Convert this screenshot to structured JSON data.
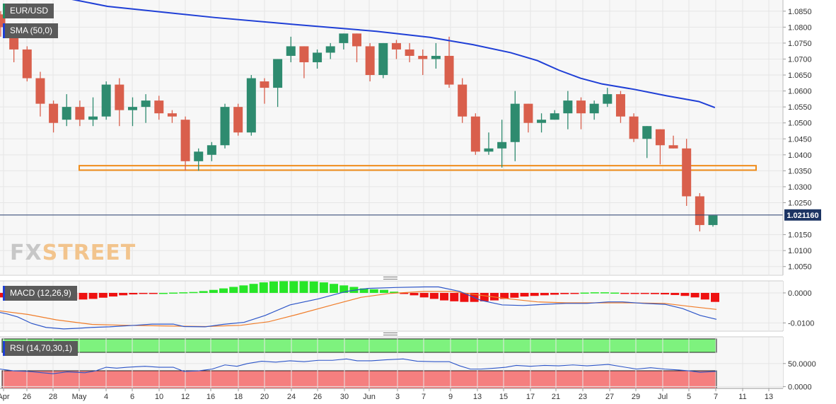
{
  "panels": {
    "price": {
      "symbol_label": "EUR/USD",
      "sma_label": "SMA (50,0)"
    },
    "macd": {
      "label": "MACD (12,26,9)"
    },
    "rsi": {
      "label": "RSI (14,70,30,1)"
    }
  },
  "watermark": {
    "part1": "FX",
    "part2": "STREET"
  },
  "colors": {
    "bull": "#2e8b6f",
    "bear": "#d95f4c",
    "sma": "#1f3fd6",
    "support": "#f08c1a",
    "hist_pos": "#27e627",
    "hist_neg": "#ee1111",
    "macd_line": "#2c55c8",
    "signal_line": "#f07d2a",
    "rsi_line": "#2c55c8",
    "rsi_top": "#7ef27e",
    "rsi_bottom": "#f57f7f"
  },
  "chart_data": [
    {
      "type": "candlestick",
      "symbol": "EUR/USD",
      "x_labels": [
        "Apr",
        "26",
        "28",
        "May",
        "4",
        "6",
        "10",
        "12",
        "16",
        "18",
        "20",
        "24",
        "26",
        "30",
        "Jun",
        "3",
        "7",
        "9",
        "13",
        "15",
        "17",
        "21",
        "23",
        "27",
        "29",
        "Jul",
        "5",
        "7",
        "11",
        "13"
      ],
      "y_ticks": [
        "1.0850",
        "1.0800",
        "1.0750",
        "1.0700",
        "1.0650",
        "1.0600",
        "1.0550",
        "1.0500",
        "1.0450",
        "1.0400",
        "1.0350",
        "1.0300",
        "1.0250",
        "1.0150",
        "1.0100",
        "1.0050"
      ],
      "ylim": [
        1.0025,
        1.0885
      ],
      "last_price_label": "1.021160",
      "last_price": 1.02116,
      "support_zone": [
        1.0352,
        1.0366
      ],
      "candles": [
        [
          1.084,
          1.085,
          1.077,
          1.08
        ],
        [
          1.08,
          1.081,
          1.069,
          1.073
        ],
        [
          1.073,
          1.074,
          1.063,
          1.064
        ],
        [
          1.064,
          1.066,
          1.052,
          1.056
        ],
        [
          1.056,
          1.057,
          1.047,
          1.05
        ],
        [
          1.051,
          1.059,
          1.049,
          1.055
        ],
        [
          1.055,
          1.057,
          1.049,
          1.051
        ],
        [
          1.051,
          1.058,
          1.049,
          1.052
        ],
        [
          1.052,
          1.063,
          1.051,
          1.062
        ],
        [
          1.062,
          1.064,
          1.049,
          1.054
        ],
        [
          1.054,
          1.058,
          1.049,
          1.055
        ],
        [
          1.055,
          1.059,
          1.05,
          1.057
        ],
        [
          1.057,
          1.0585,
          1.051,
          1.053
        ],
        [
          1.053,
          1.054,
          1.05,
          1.052
        ],
        [
          1.051,
          1.052,
          1.035,
          1.038
        ],
        [
          1.038,
          1.042,
          1.035,
          1.041
        ],
        [
          1.04,
          1.044,
          1.038,
          1.043
        ],
        [
          1.043,
          1.056,
          1.042,
          1.055
        ],
        [
          1.055,
          1.056,
          1.046,
          1.047
        ],
        [
          1.047,
          1.065,
          1.046,
          1.064
        ],
        [
          1.063,
          1.064,
          1.056,
          1.061
        ],
        [
          1.061,
          1.07,
          1.055,
          1.07
        ],
        [
          1.071,
          1.077,
          1.069,
          1.074
        ],
        [
          1.074,
          1.074,
          1.064,
          1.069
        ],
        [
          1.069,
          1.073,
          1.067,
          1.072
        ],
        [
          1.072,
          1.075,
          1.07,
          1.074
        ],
        [
          1.075,
          1.078,
          1.073,
          1.078
        ],
        [
          1.078,
          1.078,
          1.069,
          1.074
        ],
        [
          1.074,
          1.075,
          1.063,
          1.065
        ],
        [
          1.065,
          1.075,
          1.064,
          1.075
        ],
        [
          1.075,
          1.076,
          1.07,
          1.073
        ],
        [
          1.073,
          1.075,
          1.069,
          1.071
        ],
        [
          1.071,
          1.073,
          1.065,
          1.07
        ],
        [
          1.07,
          1.075,
          1.067,
          1.071
        ],
        [
          1.071,
          1.077,
          1.061,
          1.062
        ],
        [
          1.062,
          1.064,
          1.05,
          1.052
        ],
        [
          1.052,
          1.053,
          1.04,
          1.041
        ],
        [
          1.041,
          1.047,
          1.04,
          1.042
        ],
        [
          1.042,
          1.051,
          1.036,
          1.044
        ],
        [
          1.044,
          1.06,
          1.038,
          1.056
        ],
        [
          1.056,
          1.056,
          1.047,
          1.05
        ],
        [
          1.05,
          1.053,
          1.047,
          1.051
        ],
        [
          1.051,
          1.054,
          1.051,
          1.053
        ],
        [
          1.053,
          1.06,
          1.048,
          1.057
        ],
        [
          1.057,
          1.058,
          1.048,
          1.053
        ],
        [
          1.053,
          1.057,
          1.051,
          1.056
        ],
        [
          1.056,
          1.061,
          1.055,
          1.059
        ],
        [
          1.059,
          1.06,
          1.05,
          1.052
        ],
        [
          1.052,
          1.053,
          1.044,
          1.045
        ],
        [
          1.045,
          1.049,
          1.039,
          1.049
        ],
        [
          1.048,
          1.048,
          1.037,
          1.043
        ],
        [
          1.043,
          1.046,
          1.042,
          1.042
        ],
        [
          1.042,
          1.045,
          1.024,
          1.027
        ],
        [
          1.027,
          1.028,
          1.016,
          1.018
        ],
        [
          1.018,
          1.021,
          1.0175,
          1.021
        ]
      ],
      "sma_points": [
        [
          8,
          1.0905
        ],
        [
          20,
          1.0865
        ],
        [
          40,
          1.083
        ],
        [
          55,
          1.0808
        ],
        [
          70,
          1.0787
        ],
        [
          80,
          1.0768
        ],
        [
          88,
          1.0745
        ],
        [
          95,
          1.072
        ],
        [
          100,
          1.0695
        ],
        [
          104,
          1.0665
        ],
        [
          108,
          1.064
        ],
        [
          112,
          1.0622
        ],
        [
          118,
          1.0605
        ],
        [
          124,
          1.0585
        ],
        [
          130,
          1.0567
        ],
        [
          133,
          1.0548
        ]
      ]
    },
    {
      "type": "bar",
      "name": "MACD (12,26,9)",
      "y_ticks": [
        "0.0000",
        "-0.0100"
      ],
      "ylim": [
        -0.0125,
        0.004
      ],
      "histogram": [
        -0.0015,
        -0.0015,
        -0.0018,
        -0.002,
        -0.002,
        -0.002,
        -0.002,
        -0.0022,
        -0.0022,
        -0.002,
        -0.0016,
        -0.0012,
        -0.0008,
        -0.0005,
        -0.0003,
        -0.0001,
        0.0,
        0.0001,
        0.0002,
        0.0003,
        0.0006,
        0.001,
        0.0015,
        0.002,
        0.0025,
        0.003,
        0.0035,
        0.0038,
        0.004,
        0.004,
        0.004,
        0.0038,
        0.0035,
        0.003,
        0.0025,
        0.002,
        0.0015,
        0.0012,
        0.001,
        0.0004,
        -0.0003,
        -0.0008,
        -0.0015,
        -0.002,
        -0.0025,
        -0.0028,
        -0.003,
        -0.003,
        -0.0028,
        -0.0025,
        -0.002,
        -0.0016,
        -0.0012,
        -0.001,
        -0.0008,
        -0.0006,
        -0.0004,
        -0.0002,
        0.0001,
        0.0002,
        0.0002,
        0.0001,
        -0.0001,
        -0.0002,
        -0.0003,
        -0.0004,
        -0.0005,
        -0.0007,
        -0.001,
        -0.0015,
        -0.0022,
        -0.003
      ],
      "macd_line": [
        [
          0,
          -0.0065
        ],
        [
          10,
          -0.007
        ],
        [
          25,
          -0.008
        ],
        [
          45,
          -0.0102
        ],
        [
          65,
          -0.0115
        ],
        [
          90,
          -0.012
        ],
        [
          110,
          -0.0118
        ],
        [
          130,
          -0.0115
        ],
        [
          155,
          -0.0113
        ],
        [
          190,
          -0.0108
        ],
        [
          215,
          -0.0104
        ],
        [
          245,
          -0.0104
        ],
        [
          260,
          -0.0112
        ],
        [
          290,
          -0.0113
        ],
        [
          315,
          -0.0105
        ],
        [
          345,
          -0.0098
        ],
        [
          375,
          -0.0075
        ],
        [
          410,
          -0.004
        ],
        [
          450,
          -0.002
        ],
        [
          490,
          0.0005
        ],
        [
          520,
          0.0015
        ],
        [
          560,
          0.0018
        ],
        [
          600,
          0.002
        ],
        [
          620,
          0.002
        ],
        [
          650,
          0.0005
        ],
        [
          680,
          -0.0025
        ],
        [
          710,
          -0.004
        ],
        [
          740,
          -0.0042
        ],
        [
          770,
          -0.0038
        ],
        [
          800,
          -0.0035
        ],
        [
          830,
          -0.0035
        ],
        [
          860,
          -0.003
        ],
        [
          880,
          -0.003
        ],
        [
          910,
          -0.0035
        ],
        [
          940,
          -0.0038
        ],
        [
          965,
          -0.0052
        ],
        [
          990,
          -0.0075
        ],
        [
          1013,
          -0.0088
        ]
      ],
      "signal_line": [
        [
          0,
          -0.006
        ],
        [
          40,
          -0.0072
        ],
        [
          80,
          -0.009
        ],
        [
          130,
          -0.0105
        ],
        [
          180,
          -0.0108
        ],
        [
          230,
          -0.011
        ],
        [
          290,
          -0.0112
        ],
        [
          340,
          -0.0108
        ],
        [
          380,
          -0.0096
        ],
        [
          420,
          -0.0072
        ],
        [
          470,
          -0.004
        ],
        [
          510,
          -0.0015
        ],
        [
          550,
          -0.0002
        ],
        [
          600,
          0.0005
        ],
        [
          640,
          0.0005
        ],
        [
          680,
          -0.0008
        ],
        [
          720,
          -0.002
        ],
        [
          760,
          -0.003
        ],
        [
          800,
          -0.0033
        ],
        [
          840,
          -0.0033
        ],
        [
          890,
          -0.0033
        ],
        [
          940,
          -0.0035
        ],
        [
          975,
          -0.0045
        ],
        [
          1013,
          -0.0055
        ]
      ]
    },
    {
      "type": "line",
      "name": "RSI (14,70,30,1)",
      "y_ticks": [
        "50.0000",
        "0.0000"
      ],
      "ylim": [
        -4,
        108
      ],
      "overbought": 70,
      "oversold": 30,
      "rsi_line": [
        [
          0,
          38
        ],
        [
          20,
          34
        ],
        [
          40,
          33
        ],
        [
          60,
          30
        ],
        [
          75,
          28
        ],
        [
          95,
          32
        ],
        [
          120,
          30
        ],
        [
          135,
          34
        ],
        [
          150,
          42
        ],
        [
          165,
          40
        ],
        [
          180,
          42
        ],
        [
          205,
          44
        ],
        [
          225,
          42
        ],
        [
          245,
          42
        ],
        [
          260,
          33
        ],
        [
          280,
          34
        ],
        [
          300,
          38
        ],
        [
          318,
          47
        ],
        [
          335,
          44
        ],
        [
          350,
          50
        ],
        [
          370,
          55
        ],
        [
          390,
          53
        ],
        [
          410,
          56
        ],
        [
          430,
          54
        ],
        [
          450,
          57
        ],
        [
          470,
          57
        ],
        [
          490,
          60
        ],
        [
          505,
          56
        ],
        [
          525,
          56
        ],
        [
          545,
          58
        ],
        [
          570,
          60
        ],
        [
          590,
          55
        ],
        [
          615,
          54
        ],
        [
          635,
          54
        ],
        [
          650,
          45
        ],
        [
          665,
          38
        ],
        [
          680,
          38
        ],
        [
          700,
          40
        ],
        [
          715,
          42
        ],
        [
          730,
          46
        ],
        [
          750,
          44
        ],
        [
          770,
          46
        ],
        [
          790,
          45
        ],
        [
          810,
          47
        ],
        [
          830,
          45
        ],
        [
          860,
          48
        ],
        [
          880,
          43
        ],
        [
          900,
          38
        ],
        [
          920,
          41
        ],
        [
          940,
          38
        ],
        [
          960,
          36
        ],
        [
          975,
          34
        ],
        [
          990,
          31
        ],
        [
          1013,
          33
        ]
      ]
    }
  ]
}
